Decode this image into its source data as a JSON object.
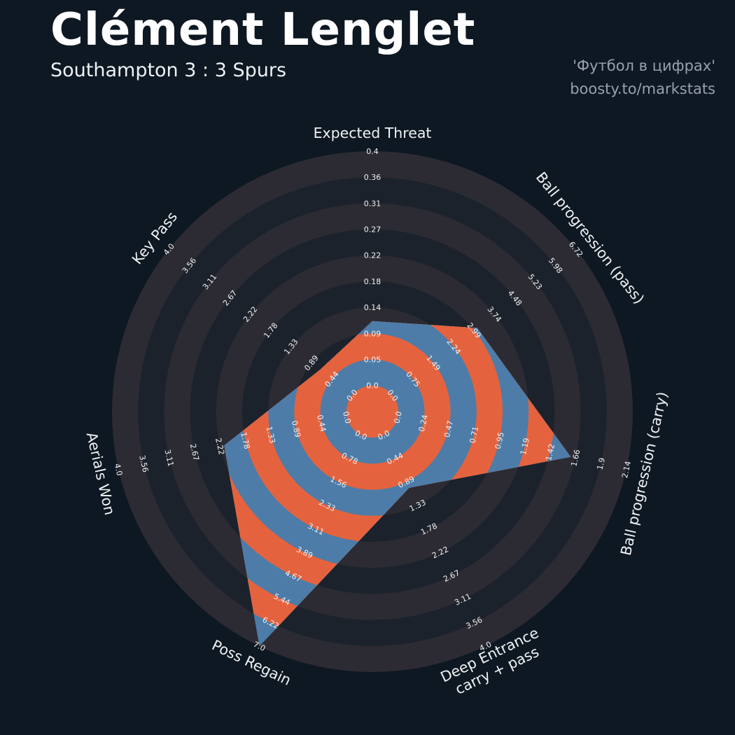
{
  "header": {
    "title": "Clément Lenglet",
    "subtitle": "Southampton 3 : 3 Spurs",
    "credit_line1": "'Футбол в цифрах'",
    "credit_line2": "boosty.to/markstats"
  },
  "chart_data": {
    "type": "radar",
    "title": "Clément Lenglet",
    "subtitle": "Southampton 3 : 3 Spurs",
    "legend": "none",
    "params": [
      {
        "label": "Expected Threat",
        "value": 0.11,
        "max": 0.4,
        "ticks": [
          "0.0",
          "0.05",
          "0.09",
          "0.14",
          "0.18",
          "0.22",
          "0.27",
          "0.31",
          "0.36",
          "0.4"
        ]
      },
      {
        "label": "Ball progression (pass)",
        "value": 3.1,
        "max": 6.72,
        "ticks": [
          "0.0",
          "0.75",
          "1.49",
          "2.24",
          "2.99",
          "3.74",
          "4.48",
          "5.23",
          "5.98",
          "6.72"
        ]
      },
      {
        "label": "Ball progression (carry)",
        "value": 1.62,
        "max": 2.14,
        "ticks": [
          "0.0",
          "0.24",
          "0.47",
          "0.71",
          "0.95",
          "1.19",
          "1.42",
          "1.66",
          "1.9",
          "2.14"
        ]
      },
      {
        "label": "Deep Entrance\ncarry + pass",
        "value": 1.0,
        "max": 4.0,
        "ticks": [
          "0.0",
          "0.44",
          "0.89",
          "1.33",
          "1.78",
          "2.22",
          "2.67",
          "3.11",
          "3.56",
          "4.0"
        ]
      },
      {
        "label": "Poss Regain",
        "value": 7.0,
        "max": 7.0,
        "ticks": [
          "0.0",
          "0.78",
          "1.56",
          "2.33",
          "3.11",
          "3.89",
          "4.67",
          "5.44",
          "6.22",
          "7.0"
        ]
      },
      {
        "label": "Aerials Won",
        "value": 2.15,
        "max": 4.0,
        "ticks": [
          "0.0",
          "0.44",
          "0.89",
          "1.33",
          "1.78",
          "2.22",
          "2.67",
          "3.11",
          "3.56",
          "4.0"
        ]
      },
      {
        "label": "Key Pass",
        "value": 0.7,
        "max": 4.0,
        "ticks": [
          "0.0",
          "0.44",
          "0.89",
          "1.33",
          "1.78",
          "2.22",
          "2.67",
          "3.11",
          "3.56",
          "4.0"
        ]
      }
    ],
    "colors": {
      "background": "#0e1822",
      "ring_dark_a": "#2c2b33",
      "ring_dark_b": "#1b222c",
      "radar_blue": "#4d7ca8",
      "radar_orange": "#e4633e",
      "tick_text": "#f2f2f2",
      "label_text": "#f0f2f4"
    }
  }
}
